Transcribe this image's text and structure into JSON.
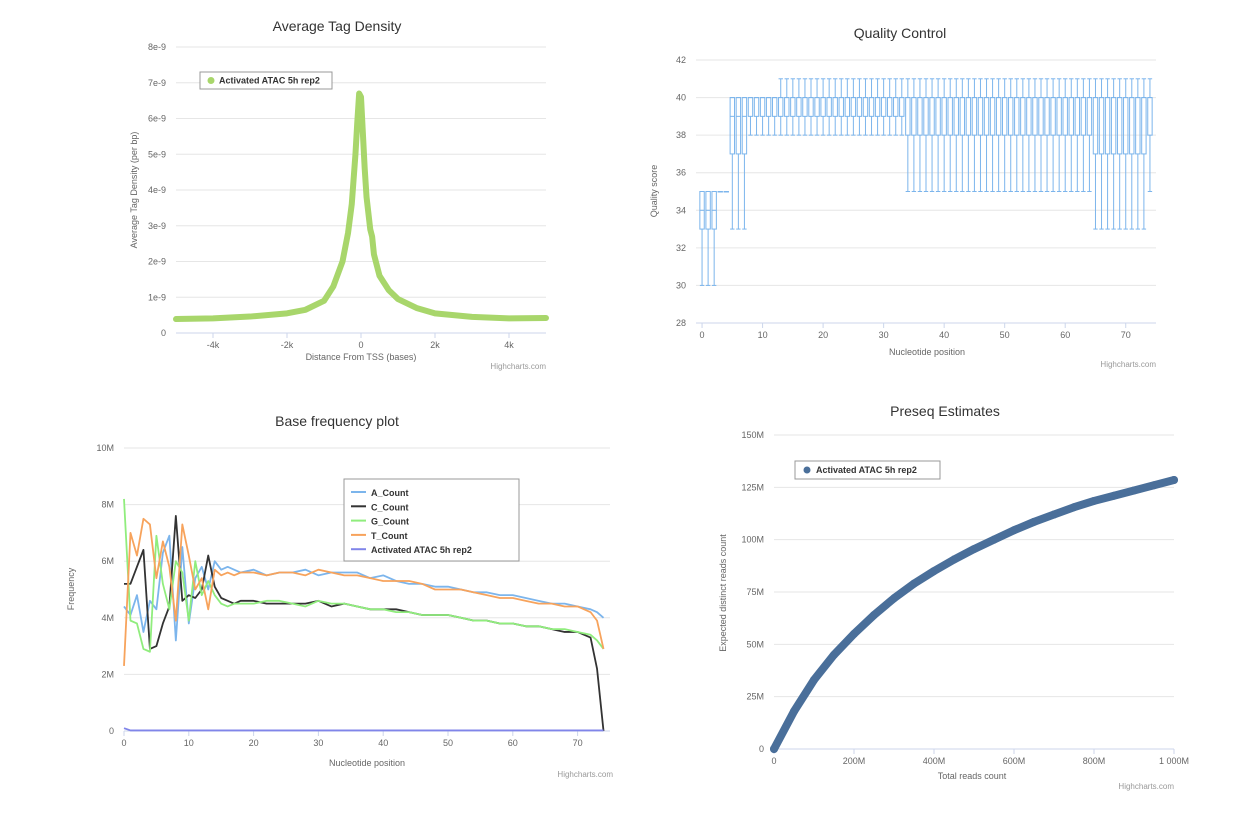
{
  "credit": "Highcharts.com",
  "chart_data": [
    {
      "id": "tag-density",
      "type": "line",
      "title": "Average Tag Density",
      "xlabel": "Distance From TSS (bases)",
      "ylabel": "Average Tag Density (per bp)",
      "xlim": [
        -5000,
        5000
      ],
      "ylim": [
        0,
        8e-09
      ],
      "x_ticks": [
        -4000,
        -2000,
        0,
        2000,
        4000
      ],
      "x_tick_labels": [
        "-4k",
        "-2k",
        "0",
        "2k",
        "4k"
      ],
      "y_ticks": [
        0,
        1e-09,
        2e-09,
        3e-09,
        4e-09,
        5e-09,
        6e-09,
        7e-09,
        8e-09
      ],
      "y_tick_labels": [
        "0",
        "1e-9",
        "2e-9",
        "3e-9",
        "4e-9",
        "5e-9",
        "6e-9",
        "7e-9",
        "8e-9"
      ],
      "legend": "top-left",
      "series": [
        {
          "name": "Activated ATAC 5h rep2",
          "color": "#a8d66b",
          "x": [
            -5000,
            -4000,
            -3000,
            -2000,
            -1500,
            -1000,
            -750,
            -500,
            -350,
            -250,
            -150,
            -100,
            -50,
            0,
            50,
            100,
            150,
            250,
            300,
            350,
            500,
            750,
            1000,
            1500,
            2000,
            3000,
            4000,
            5000
          ],
          "y": [
            3.9e-10,
            4.1e-10,
            4.6e-10,
            5.5e-10,
            6.5e-10,
            9e-10,
            1.3e-09,
            2e-09,
            2.8e-09,
            3.6e-09,
            5e-09,
            5.9e-09,
            6.7e-09,
            6.6e-09,
            5.6e-09,
            4.6e-09,
            3.8e-09,
            2.9e-09,
            2.7e-09,
            2.2e-09,
            1.6e-09,
            1.2e-09,
            9.5e-10,
            7e-10,
            5.5e-10,
            4.5e-10,
            4.1e-10,
            4.2e-10
          ]
        }
      ]
    },
    {
      "id": "quality-control",
      "type": "boxplot",
      "title": "Quality Control",
      "xlabel": "Nucleotide position",
      "ylabel": "Quality score",
      "xlim": [
        -1,
        75
      ],
      "ylim": [
        28,
        42
      ],
      "x_ticks": [
        0,
        10,
        20,
        30,
        40,
        50,
        60,
        70
      ],
      "x_tick_labels": [
        "0",
        "10",
        "20",
        "30",
        "40",
        "50",
        "60",
        "70"
      ],
      "y_ticks": [
        28,
        30,
        32,
        34,
        36,
        38,
        40,
        42
      ],
      "y_tick_labels": [
        "28",
        "30",
        "32",
        "34",
        "36",
        "38",
        "40",
        "42"
      ],
      "color": "#7cb5ec",
      "segments": [
        {
          "from": 0,
          "to": 2,
          "low": 30,
          "q1": 33,
          "median": 34,
          "q3": 35,
          "high": 35
        },
        {
          "from": 3,
          "to": 4,
          "low": 35,
          "q1": 35,
          "median": 35,
          "q3": 35,
          "high": 35
        },
        {
          "from": 5,
          "to": 7,
          "low": 33,
          "q1": 37,
          "median": 39,
          "q3": 40,
          "high": 40
        },
        {
          "from": 8,
          "to": 12,
          "low": 38,
          "q1": 39,
          "median": 40,
          "q3": 40,
          "high": 40
        },
        {
          "from": 13,
          "to": 33,
          "low": 38,
          "q1": 39,
          "median": 40,
          "q3": 40,
          "high": 41
        },
        {
          "from": 34,
          "to": 64,
          "low": 35,
          "q1": 38,
          "median": 40,
          "q3": 40,
          "high": 41
        },
        {
          "from": 65,
          "to": 73,
          "low": 33,
          "q1": 37,
          "median": 40,
          "q3": 40,
          "high": 41
        },
        {
          "from": 74,
          "to": 74,
          "low": 35,
          "q1": 38,
          "median": 40,
          "q3": 40,
          "high": 41
        }
      ]
    },
    {
      "id": "base-frequency",
      "type": "line",
      "title": "Base frequency plot",
      "xlabel": "Nucleotide position",
      "ylabel": "Frequency",
      "xlim": [
        0,
        75
      ],
      "ylim": [
        0,
        10000000
      ],
      "x_ticks": [
        0,
        10,
        20,
        30,
        40,
        50,
        60,
        70
      ],
      "x_tick_labels": [
        "0",
        "10",
        "20",
        "30",
        "40",
        "50",
        "60",
        "70"
      ],
      "y_ticks": [
        0,
        2000000,
        4000000,
        6000000,
        8000000,
        10000000
      ],
      "y_tick_labels": [
        "0",
        "2M",
        "4M",
        "6M",
        "8M",
        "10M"
      ],
      "legend": "top-right",
      "x": [
        0,
        1,
        2,
        3,
        4,
        5,
        6,
        7,
        8,
        9,
        10,
        11,
        12,
        13,
        14,
        15,
        16,
        17,
        18,
        20,
        22,
        24,
        26,
        28,
        30,
        32,
        34,
        36,
        38,
        40,
        42,
        44,
        46,
        48,
        50,
        52,
        54,
        56,
        58,
        60,
        62,
        64,
        66,
        68,
        70,
        72,
        73,
        74
      ],
      "series": [
        {
          "name": "A_Count",
          "color": "#7cb5ec",
          "values": [
            4400000,
            4100000,
            4800000,
            3500000,
            4600000,
            4300000,
            6300000,
            6900000,
            3200000,
            6500000,
            3800000,
            5400000,
            5800000,
            5000000,
            6000000,
            5700000,
            5800000,
            5700000,
            5600000,
            5700000,
            5500000,
            5600000,
            5600000,
            5700000,
            5500000,
            5600000,
            5600000,
            5600000,
            5400000,
            5500000,
            5300000,
            5200000,
            5200000,
            5100000,
            5100000,
            5000000,
            4900000,
            4900000,
            4800000,
            4800000,
            4700000,
            4600000,
            4500000,
            4500000,
            4400000,
            4300000,
            4200000,
            4000000
          ]
        },
        {
          "name": "C_Count",
          "color": "#333333",
          "values": [
            5200000,
            5200000,
            5800000,
            6400000,
            2900000,
            3000000,
            3800000,
            4400000,
            7600000,
            4600000,
            4800000,
            4700000,
            5000000,
            6200000,
            5100000,
            4700000,
            4600000,
            4500000,
            4600000,
            4600000,
            4500000,
            4500000,
            4500000,
            4500000,
            4600000,
            4400000,
            4500000,
            4400000,
            4300000,
            4300000,
            4300000,
            4200000,
            4100000,
            4100000,
            4100000,
            4000000,
            3900000,
            3900000,
            3800000,
            3800000,
            3700000,
            3700000,
            3600000,
            3500000,
            3500000,
            3300000,
            2200000,
            0
          ]
        },
        {
          "name": "G_Count",
          "color": "#90ed7d",
          "values": [
            8200000,
            3900000,
            3800000,
            2900000,
            2800000,
            6900000,
            5200000,
            4300000,
            6000000,
            5600000,
            3900000,
            6000000,
            4800000,
            5300000,
            4800000,
            4500000,
            4400000,
            4500000,
            4500000,
            4500000,
            4600000,
            4600000,
            4500000,
            4400000,
            4600000,
            4500000,
            4500000,
            4400000,
            4300000,
            4300000,
            4200000,
            4200000,
            4100000,
            4100000,
            4100000,
            4000000,
            3900000,
            3900000,
            3800000,
            3800000,
            3700000,
            3700000,
            3600000,
            3600000,
            3500000,
            3400000,
            3200000,
            2900000
          ]
        },
        {
          "name": "T_Count",
          "color": "#f7a35c",
          "values": [
            2300000,
            7000000,
            6200000,
            7500000,
            7300000,
            5400000,
            6700000,
            5800000,
            3900000,
            7300000,
            6200000,
            5000000,
            5400000,
            4300000,
            5700000,
            5500000,
            5600000,
            5500000,
            5600000,
            5600000,
            5500000,
            5600000,
            5600000,
            5500000,
            5700000,
            5600000,
            5500000,
            5500000,
            5400000,
            5300000,
            5300000,
            5300000,
            5200000,
            5000000,
            5000000,
            5000000,
            4900000,
            4800000,
            4700000,
            4700000,
            4600000,
            4500000,
            4500000,
            4400000,
            4400000,
            4200000,
            3900000,
            2900000
          ]
        },
        {
          "name": "Activated ATAC 5h rep2",
          "color": "#8085e9",
          "values": [
            100000,
            20000,
            20000,
            20000,
            20000,
            20000,
            20000,
            20000,
            20000,
            20000,
            20000,
            20000,
            20000,
            20000,
            20000,
            20000,
            20000,
            20000,
            20000,
            20000,
            20000,
            20000,
            20000,
            20000,
            20000,
            20000,
            20000,
            20000,
            20000,
            20000,
            20000,
            20000,
            20000,
            20000,
            20000,
            20000,
            20000,
            20000,
            20000,
            20000,
            20000,
            20000,
            20000,
            20000,
            20000,
            20000,
            20000,
            20000
          ]
        }
      ]
    },
    {
      "id": "preseq",
      "type": "scatter",
      "title": "Preseq Estimates",
      "xlabel": "Total reads count",
      "ylabel": "Expected distinct reads count",
      "xlim": [
        0,
        1000000000
      ],
      "ylim": [
        0,
        150000000
      ],
      "x_ticks": [
        0,
        200000000,
        400000000,
        600000000,
        800000000,
        1000000000
      ],
      "x_tick_labels": [
        "0",
        "200M",
        "400M",
        "600M",
        "800M",
        "1 000M"
      ],
      "y_ticks": [
        0,
        25000000,
        50000000,
        75000000,
        100000000,
        125000000,
        150000000
      ],
      "y_tick_labels": [
        "0",
        "25M",
        "50M",
        "75M",
        "100M",
        "125M",
        "150M"
      ],
      "legend": "top-left",
      "series": [
        {
          "name": "Activated ATAC 5h rep2",
          "color": "#4a6f9a",
          "x": [
            0,
            50000000,
            100000000,
            150000000,
            200000000,
            250000000,
            300000000,
            350000000,
            400000000,
            450000000,
            500000000,
            550000000,
            600000000,
            650000000,
            700000000,
            750000000,
            800000000,
            850000000,
            900000000,
            950000000,
            1000000000
          ],
          "y": [
            0,
            18000000,
            33000000,
            45000000,
            55000000,
            64000000,
            72000000,
            79000000,
            85000000,
            90500000,
            95500000,
            100000000,
            104500000,
            108500000,
            112000000,
            115500000,
            118500000,
            121000000,
            123500000,
            126000000,
            128500000
          ]
        }
      ]
    }
  ]
}
